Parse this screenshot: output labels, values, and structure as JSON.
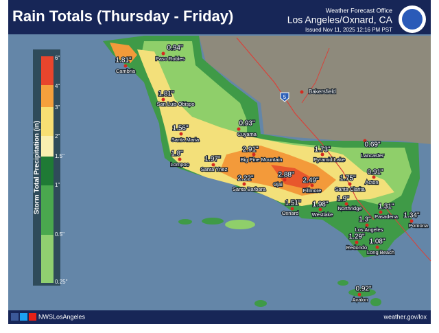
{
  "header": {
    "title": "Rain Totals (Thursday - Friday)",
    "office": "Weather Forecast Office",
    "location": "Los Angeles/Oxnard, CA",
    "issued": "Issued Nov 11, 2025 12:16 PM PST"
  },
  "legend": {
    "title": "Storm Total Precipitation (in)",
    "labels": [
      "6\"",
      "4\"",
      "3\"",
      "2\"",
      "1.5\"",
      "1\"",
      "0.5\"",
      "0.25\""
    ]
  },
  "stations": [
    {
      "name": "Paso Robles",
      "total": "0.94\""
    },
    {
      "name": "Cambria",
      "total": "1.81\""
    },
    {
      "name": "San Luis Obispo",
      "total": "1.81\""
    },
    {
      "name": "Santa Maria",
      "total": "1.56\""
    },
    {
      "name": "Cuyama",
      "total": "0.93\""
    },
    {
      "name": "Lompoc",
      "total": "1.8\""
    },
    {
      "name": "Santa Ynez",
      "total": "1.97\""
    },
    {
      "name": "Big Pine Mountain",
      "total": "2.91\""
    },
    {
      "name": "Santa Barbara",
      "total": "2.22\""
    },
    {
      "name": "Ojai",
      "total": "2.88\""
    },
    {
      "name": "Fillmore",
      "total": "2.49\""
    },
    {
      "name": "Pyramid Lake",
      "total": "1.73\""
    },
    {
      "name": "Lancaster",
      "total": "0.69\""
    },
    {
      "name": "Acton",
      "total": "0.91\""
    },
    {
      "name": "Santa Clarita",
      "total": "1.75\""
    },
    {
      "name": "Northridge",
      "total": "1.9\""
    },
    {
      "name": "Oxnard",
      "total": "1.51\""
    },
    {
      "name": "Westlake",
      "total": "1.98\""
    },
    {
      "name": "Pasadena",
      "total": "1.31\""
    },
    {
      "name": "Pomona",
      "total": "1.34\""
    },
    {
      "name": "Los Angeles",
      "total": "1.3\""
    },
    {
      "name": "Redondo",
      "total": "1.29\""
    },
    {
      "name": "Long Beach",
      "total": "1.08\""
    },
    {
      "name": "Avalon",
      "total": "0.92\""
    }
  ],
  "places": {
    "bakersfield": "Bakersfield",
    "interstate": "5"
  },
  "footer": {
    "social": "NWSLosAngeles",
    "url": "weather.gov/lox"
  }
}
